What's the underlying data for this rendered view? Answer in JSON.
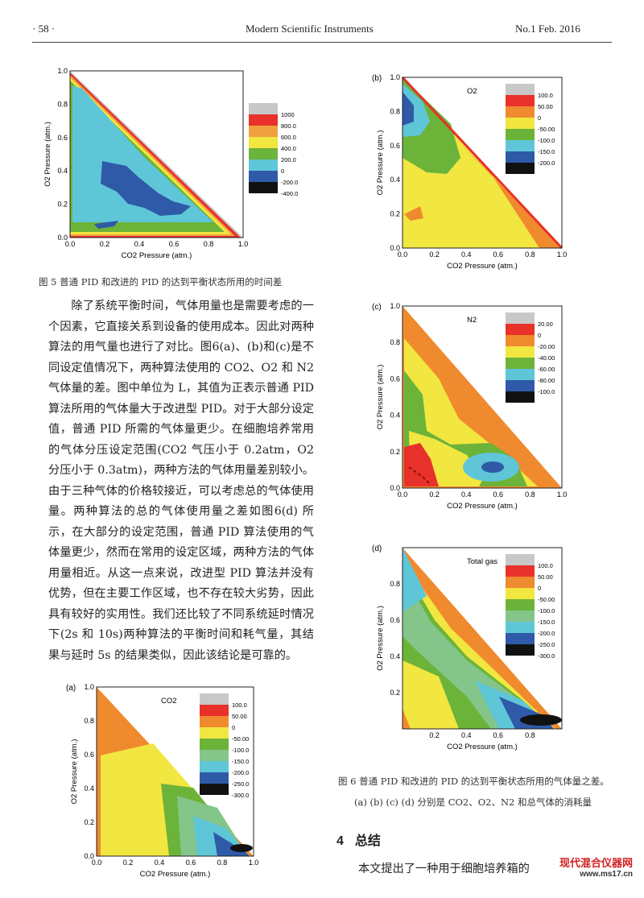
{
  "header": {
    "page": "· 58 ·",
    "journal": "Modern Scientific Instruments",
    "issue": "No.1  Feb.  2016"
  },
  "axes": {
    "xlabel": "CO2 Pressure (atm.)",
    "ylabel": "O2 Pressure (atm.)",
    "ticks": [
      "0.0",
      "0.2",
      "0.4",
      "0.6",
      "0.8",
      "1.0"
    ],
    "ticks_b": [
      "0.2",
      "0.4",
      "0.6",
      "0.8"
    ]
  },
  "fig5": {
    "caption": "图 5  普通 PID 和改进的 PID 的达到平衡状态所用的时间差",
    "legend": [
      "1000",
      "800.0",
      "600.0",
      "400.0",
      "200.0",
      "0",
      "-200.0",
      "-400.0"
    ],
    "colors": [
      "#c8c8c8",
      "#e8312a",
      "#f0a040",
      "#f2e640",
      "#6cb33a",
      "#5fc6d8",
      "#2e5aa8",
      "#111111"
    ]
  },
  "fig6a": {
    "panel": "(a)",
    "gas": "CO2",
    "legend": [
      "100.0",
      "50.00",
      "0",
      "-50.00",
      "-100.0",
      "-150.0",
      "-200.0",
      "-250.0",
      "-300.0"
    ],
    "colors": [
      "#c8c8c8",
      "#e8312a",
      "#f08a2e",
      "#f2e640",
      "#6cb33a",
      "#84c58a",
      "#5fc6d8",
      "#2e5aa8",
      "#111111"
    ]
  },
  "fig6b": {
    "panel": "(b)",
    "gas": "O2",
    "legend": [
      "100.0",
      "50.00",
      "0",
      "-50.00",
      "-100.0",
      "-150.0",
      "-200.0"
    ],
    "colors": [
      "#c8c8c8",
      "#e8312a",
      "#f08a2e",
      "#f2e640",
      "#6cb33a",
      "#5fc6d8",
      "#2e5aa8",
      "#111111"
    ]
  },
  "fig6c": {
    "panel": "(c)",
    "gas": "N2",
    "legend": [
      "20.00",
      "0",
      "-20.00",
      "-40.00",
      "-60.00",
      "-80.00",
      "-100.0"
    ],
    "colors": [
      "#c8c8c8",
      "#e8312a",
      "#f08a2e",
      "#f2e640",
      "#6cb33a",
      "#5fc6d8",
      "#2e5aa8",
      "#111111"
    ]
  },
  "fig6d": {
    "panel": "(d)",
    "gas": "Total gas",
    "legend": [
      "100.0",
      "50.00",
      "0",
      "-50.00",
      "-100.0",
      "-150.0",
      "-200.0",
      "-250.0",
      "-300.0"
    ],
    "colors": [
      "#c8c8c8",
      "#e8312a",
      "#f08a2e",
      "#f2e640",
      "#6cb33a",
      "#84c58a",
      "#5fc6d8",
      "#2e5aa8",
      "#111111"
    ]
  },
  "fig6_caption": {
    "line1": "图 6  普通 PID 和改进的 PID 的达到平衡状态所用的气体量之差。",
    "line2": "(a) (b) (c) (d) 分别是 CO2、O2、N2 和总气体的消耗量"
  },
  "paragraph": "除了系统平衡时间，气体用量也是需要考虑的一个因素，它直接关系到设备的使用成本。因此对两种算法的用气量也进行了对比。图6(a)、(b)和(c)是不同设定值情况下，两种算法使用的 CO2、O2 和 N2 气体量的差。图中单位为 L，其值为正表示普通 PID 算法所用的气体量大于改进型 PID。对于大部分设定值，普通 PID 所需的气体量更少。在细胞培养常用的气体分压设定范围(CO2 气压小于 0.2atm，O2 分压小于 0.3atm)，两种方法的气体用量差别较小。由于三种气体的价格较接近，可以考虑总的气体使用量。两种算法的总的气体使用量之差如图6(d) 所示，在大部分的设定范围，普通 PID 算法使用的气体量更少，然而在常用的设定区域，两种方法的气体用量相近。从这一点来说，改进型 PID 算法并没有优势，但在主要工作区域，也不存在较大劣势，因此具有较好的实用性。我们还比较了不同系统延时情况下(2s 和 10s)两种算法的平衡时间和耗气量，其结果与延时 5s 的结果类似，因此该结论是可靠的。",
  "section": {
    "num": "4",
    "title": "总结"
  },
  "body2": "本文提出了一种用于细胞培养箱的",
  "watermark": {
    "brand": "现代混合仪器网",
    "url": "www.ms17.cn"
  }
}
